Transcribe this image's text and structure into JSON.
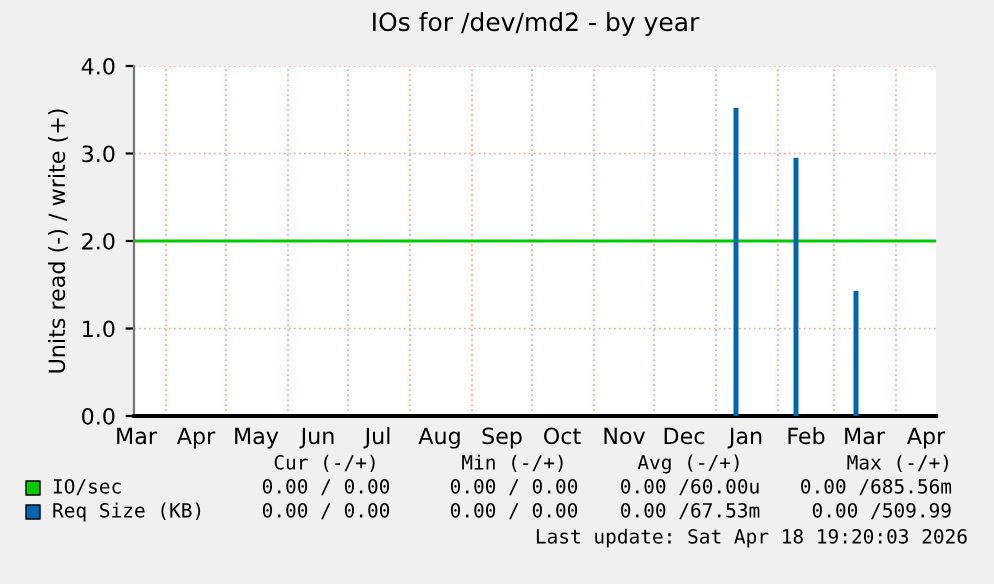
{
  "chart_data": {
    "type": "bar",
    "title": "IOs for /dev/md2 - by year",
    "ylabel": "Units read (-) / write (+)",
    "xlim": [
      "2025-03-16",
      "2026-04-21"
    ],
    "xticks": [
      {
        "value": "2025-04-01",
        "label": null
      },
      {
        "value": "2025-05-01",
        "label": null
      },
      {
        "value": "2025-06-01",
        "label": null
      },
      {
        "value": "2025-07-01",
        "label": null
      },
      {
        "value": "2025-08-01",
        "label": null
      },
      {
        "value": "2025-09-01",
        "label": null
      },
      {
        "value": "2025-10-01",
        "label": null
      },
      {
        "value": "2025-11-01",
        "label": null
      },
      {
        "value": "2025-12-01",
        "label": null
      },
      {
        "value": "2026-01-01",
        "label": null
      },
      {
        "value": "2026-02-01",
        "label": null
      },
      {
        "value": "2026-03-01",
        "label": null
      },
      {
        "value": "2026-04-01",
        "label": null
      },
      {
        "value": "2025-03-17",
        "label": "Mar"
      },
      {
        "value": "2025-04-16",
        "label": "Apr"
      },
      {
        "value": "2025-05-16",
        "label": "May"
      },
      {
        "value": "2025-06-16",
        "label": "Jun"
      },
      {
        "value": "2025-07-16",
        "label": "Jul"
      },
      {
        "value": "2025-08-16",
        "label": "Aug"
      },
      {
        "value": "2025-09-16",
        "label": "Sep"
      },
      {
        "value": "2025-10-16",
        "label": "Oct"
      },
      {
        "value": "2025-11-16",
        "label": "Nov"
      },
      {
        "value": "2025-12-16",
        "label": "Dec"
      },
      {
        "value": "2026-01-16",
        "label": "Jan"
      },
      {
        "value": "2026-02-15",
        "label": "Feb"
      },
      {
        "value": "2026-03-16",
        "label": "Mar"
      },
      {
        "value": "2026-04-16",
        "label": "Apr"
      }
    ],
    "ylim": [
      0,
      4
    ],
    "yticks": [
      {
        "value": 0,
        "label": "0.0"
      },
      {
        "value": 1,
        "label": "1.0"
      },
      {
        "value": 2,
        "label": "2.0"
      },
      {
        "value": 3,
        "label": "3.0"
      },
      {
        "value": 4,
        "label": "4.0"
      }
    ],
    "grid": true,
    "legend": "bottom",
    "series": [
      {
        "name": "IO/sec",
        "type": "line",
        "color": "#00cc00",
        "x": [
          "2025-03-16",
          "2026-04-21"
        ],
        "values": [
          2.0,
          2.0
        ]
      },
      {
        "name": "Req Size (KB)",
        "color": "#0066b3",
        "x": [
          "2026-01-11",
          "2026-02-10",
          "2026-03-12"
        ],
        "values": [
          3.52,
          2.95,
          1.43
        ]
      }
    ],
    "annotations": [
      "Cur (-/+)",
      "Min (-/+)",
      "Avg (-/+)",
      "Max (-/+)",
      "0.00 / 0.00",
      "0.00 / 0.00",
      "0.00 /60.00u",
      "0.00 /685.56m",
      "0.00 / 0.00",
      "0.00 / 0.00",
      "0.00 /67.53m",
      "0.00 /509.99",
      "Last update: Sat Apr 18 19:20:03 2026"
    ]
  }
}
